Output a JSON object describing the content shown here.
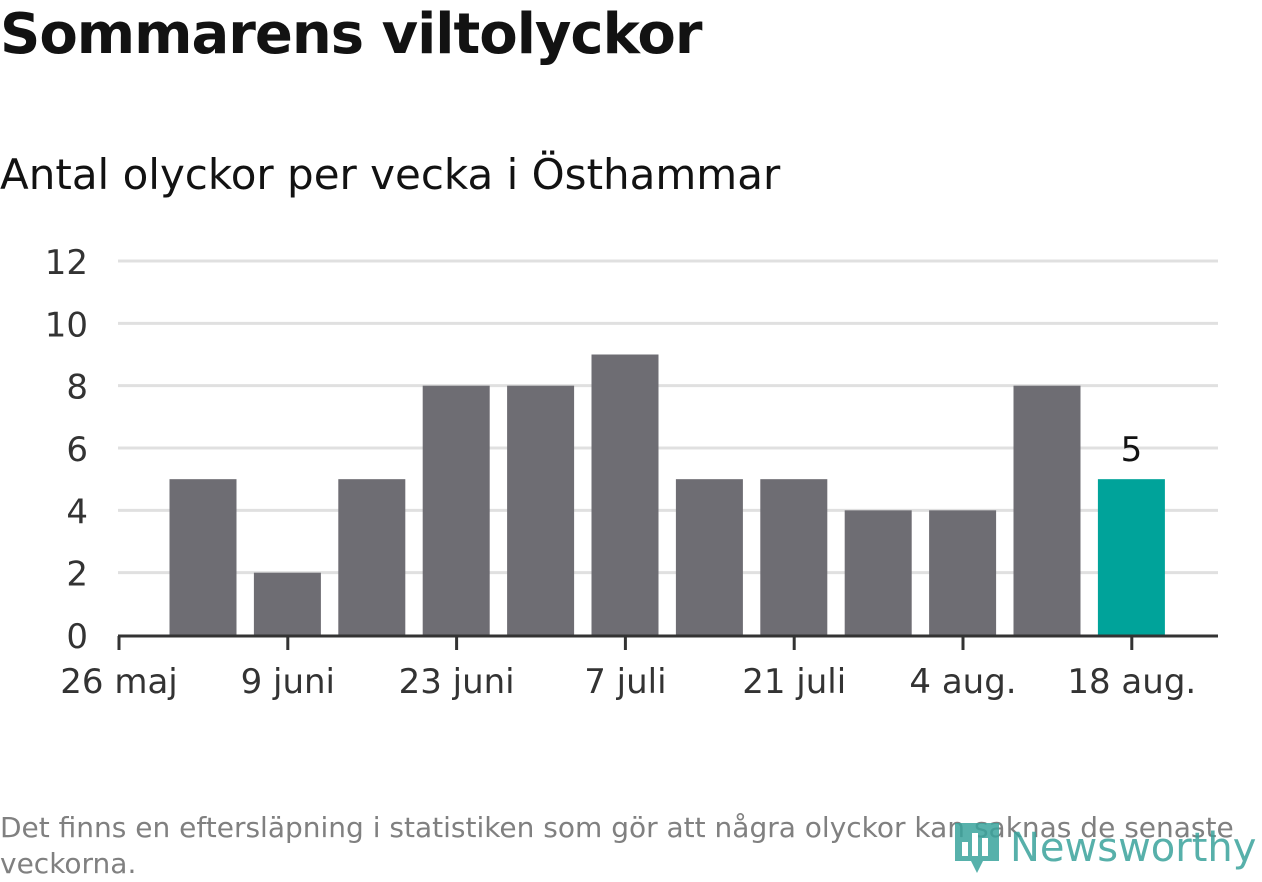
{
  "title": "Sommarens viltolyckor",
  "subtitle": "Antal olyckor per vecka i Östhammar",
  "footnote": "Det finns en eftersläpning i statistiken som gör att några olyckor kan saknas de senaste veckorna.",
  "brand": {
    "name": "Newsworthy",
    "icon": "bar-chart-pin-icon",
    "color": "#3aa39c"
  },
  "colors": {
    "bar": "#6e6d73",
    "highlight": "#00a39a",
    "grid": "#e0e0e0",
    "axis": "#333333"
  },
  "chart_data": {
    "type": "bar",
    "title": "",
    "xlabel": "",
    "ylabel": "",
    "ylim": [
      0,
      12
    ],
    "y_ticks": [
      "0",
      "2",
      "4",
      "6",
      "8",
      "10",
      "12"
    ],
    "x_tick_labels": [
      "26 maj",
      "9 juni",
      "23 juni",
      "7 juli",
      "21 juli",
      "4 aug.",
      "18 aug."
    ],
    "values": [
      5,
      2,
      5,
      8,
      8,
      9,
      5,
      5,
      4,
      4,
      8,
      5
    ],
    "highlight_index": 11,
    "data_labels": [
      "5"
    ],
    "grid": true
  }
}
